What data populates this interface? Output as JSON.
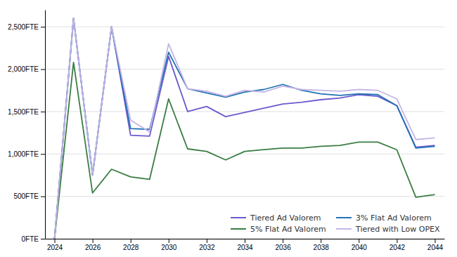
{
  "chart_data": {
    "type": "line",
    "x": [
      2024,
      2025,
      2026,
      2027,
      2028,
      2029,
      2030,
      2031,
      2032,
      2033,
      2034,
      2035,
      2036,
      2037,
      2038,
      2039,
      2040,
      2041,
      2042,
      2043,
      2044
    ],
    "series": [
      {
        "name": "Tiered Ad Valorem",
        "color": "#6A5ACD",
        "values": [
          0,
          2600,
          750,
          2500,
          1220,
          1210,
          2150,
          1500,
          1560,
          1440,
          1490,
          1540,
          1590,
          1610,
          1640,
          1660,
          1700,
          1680,
          1570,
          1080,
          1100
        ]
      },
      {
        "name": "3% Flat Ad Valorem",
        "color": "#2272B5",
        "values": [
          0,
          2600,
          750,
          2500,
          1300,
          1290,
          2200,
          1770,
          1720,
          1670,
          1730,
          1760,
          1820,
          1750,
          1710,
          1690,
          1710,
          1700,
          1570,
          1070,
          1090
        ]
      },
      {
        "name": "5% Flat Ad Valorem",
        "color": "#3A7D44",
        "values": [
          0,
          2080,
          540,
          820,
          730,
          700,
          1650,
          1060,
          1030,
          930,
          1030,
          1050,
          1070,
          1070,
          1090,
          1100,
          1140,
          1140,
          1050,
          490,
          520
        ]
      },
      {
        "name": "Tiered with Low OPEX",
        "color": "#C4B6E5",
        "values": [
          0,
          2600,
          750,
          2500,
          1400,
          1260,
          2300,
          1770,
          1740,
          1680,
          1750,
          1730,
          1800,
          1760,
          1750,
          1740,
          1760,
          1750,
          1650,
          1170,
          1190
        ]
      }
    ],
    "xlim": [
      2023.5,
      2044.5
    ],
    "ylim": [
      0,
      2700
    ],
    "xticks": [
      2024,
      2026,
      2028,
      2030,
      2032,
      2034,
      2036,
      2038,
      2040,
      2042,
      2044
    ],
    "yticks": [
      {
        "value": 0,
        "label": "0FTE"
      },
      {
        "value": 500,
        "label": "500FTE"
      },
      {
        "value": 1000,
        "label": "1,000FTE"
      },
      {
        "value": 1500,
        "label": "1,500FTE"
      },
      {
        "value": 2000,
        "label": "2,000FTE"
      },
      {
        "value": 2500,
        "label": "2,500FTE"
      }
    ],
    "grid": true,
    "legend": "lower right"
  }
}
